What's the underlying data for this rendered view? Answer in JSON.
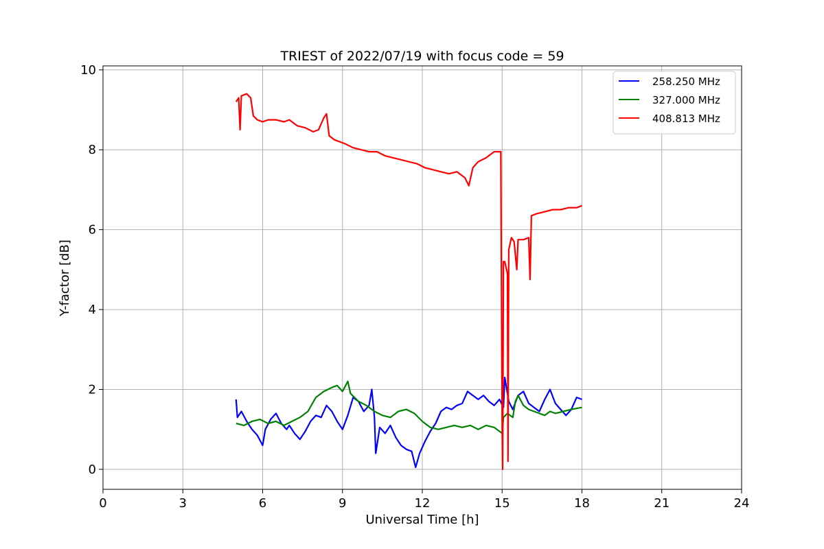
{
  "chart_data": {
    "type": "line",
    "title": "TRIEST of 2022/07/19 with focus code = 59",
    "xlabel": "Universal Time [h]",
    "ylabel": "Y-factor [dB]",
    "xlim": [
      0,
      24
    ],
    "ylim": [
      -0.5,
      10.1
    ],
    "xticks": [
      0,
      3,
      6,
      9,
      12,
      15,
      18,
      21,
      24
    ],
    "yticks": [
      0,
      2,
      4,
      6,
      8,
      10
    ],
    "grid": true,
    "legend_position": "top-right",
    "series": [
      {
        "name": "258.250 MHz",
        "color": "#0000ff",
        "points": [
          [
            5.0,
            1.75
          ],
          [
            5.05,
            1.3
          ],
          [
            5.2,
            1.45
          ],
          [
            5.4,
            1.2
          ],
          [
            5.6,
            1.0
          ],
          [
            5.8,
            0.85
          ],
          [
            6.0,
            0.6
          ],
          [
            6.1,
            1.0
          ],
          [
            6.3,
            1.25
          ],
          [
            6.5,
            1.4
          ],
          [
            6.7,
            1.15
          ],
          [
            6.9,
            1.0
          ],
          [
            7.0,
            1.1
          ],
          [
            7.2,
            0.9
          ],
          [
            7.4,
            0.75
          ],
          [
            7.6,
            0.95
          ],
          [
            7.8,
            1.2
          ],
          [
            8.0,
            1.35
          ],
          [
            8.2,
            1.3
          ],
          [
            8.4,
            1.6
          ],
          [
            8.6,
            1.45
          ],
          [
            8.8,
            1.2
          ],
          [
            9.0,
            1.0
          ],
          [
            9.2,
            1.35
          ],
          [
            9.4,
            1.8
          ],
          [
            9.6,
            1.7
          ],
          [
            9.8,
            1.45
          ],
          [
            10.0,
            1.6
          ],
          [
            10.1,
            2.0
          ],
          [
            10.2,
            1.3
          ],
          [
            10.25,
            0.4
          ],
          [
            10.4,
            1.05
          ],
          [
            10.6,
            0.9
          ],
          [
            10.8,
            1.1
          ],
          [
            11.0,
            0.8
          ],
          [
            11.2,
            0.6
          ],
          [
            11.4,
            0.5
          ],
          [
            11.6,
            0.45
          ],
          [
            11.75,
            0.05
          ],
          [
            11.9,
            0.4
          ],
          [
            12.1,
            0.7
          ],
          [
            12.3,
            0.95
          ],
          [
            12.5,
            1.15
          ],
          [
            12.7,
            1.45
          ],
          [
            12.9,
            1.55
          ],
          [
            13.1,
            1.5
          ],
          [
            13.3,
            1.6
          ],
          [
            13.5,
            1.65
          ],
          [
            13.7,
            1.95
          ],
          [
            13.9,
            1.85
          ],
          [
            14.1,
            1.75
          ],
          [
            14.3,
            1.85
          ],
          [
            14.5,
            1.7
          ],
          [
            14.7,
            1.6
          ],
          [
            14.9,
            1.75
          ],
          [
            15.05,
            1.55
          ],
          [
            15.1,
            2.3
          ],
          [
            15.25,
            1.7
          ],
          [
            15.4,
            1.5
          ],
          [
            15.6,
            1.85
          ],
          [
            15.8,
            1.95
          ],
          [
            16.0,
            1.65
          ],
          [
            16.2,
            1.55
          ],
          [
            16.4,
            1.45
          ],
          [
            16.6,
            1.75
          ],
          [
            16.8,
            2.0
          ],
          [
            17.0,
            1.65
          ],
          [
            17.2,
            1.5
          ],
          [
            17.4,
            1.35
          ],
          [
            17.6,
            1.5
          ],
          [
            17.8,
            1.8
          ],
          [
            18.0,
            1.75
          ]
        ]
      },
      {
        "name": "327.000 MHz",
        "color": "#008000",
        "points": [
          [
            5.0,
            1.15
          ],
          [
            5.3,
            1.1
          ],
          [
            5.6,
            1.2
          ],
          [
            5.9,
            1.25
          ],
          [
            6.2,
            1.15
          ],
          [
            6.5,
            1.2
          ],
          [
            6.8,
            1.1
          ],
          [
            7.1,
            1.2
          ],
          [
            7.4,
            1.3
          ],
          [
            7.7,
            1.45
          ],
          [
            8.0,
            1.8
          ],
          [
            8.3,
            1.95
          ],
          [
            8.6,
            2.05
          ],
          [
            8.8,
            2.1
          ],
          [
            9.0,
            1.95
          ],
          [
            9.2,
            2.2
          ],
          [
            9.3,
            1.9
          ],
          [
            9.6,
            1.7
          ],
          [
            9.9,
            1.6
          ],
          [
            10.2,
            1.45
          ],
          [
            10.5,
            1.35
          ],
          [
            10.8,
            1.3
          ],
          [
            11.1,
            1.45
          ],
          [
            11.4,
            1.5
          ],
          [
            11.7,
            1.4
          ],
          [
            12.0,
            1.2
          ],
          [
            12.3,
            1.05
          ],
          [
            12.6,
            1.0
          ],
          [
            12.9,
            1.05
          ],
          [
            13.2,
            1.1
          ],
          [
            13.5,
            1.05
          ],
          [
            13.8,
            1.1
          ],
          [
            14.1,
            1.0
          ],
          [
            14.4,
            1.1
          ],
          [
            14.7,
            1.05
          ],
          [
            15.0,
            0.9
          ],
          [
            15.05,
            1.3
          ],
          [
            15.2,
            1.4
          ],
          [
            15.4,
            1.3
          ],
          [
            15.5,
            1.7
          ],
          [
            15.6,
            1.85
          ],
          [
            15.8,
            1.6
          ],
          [
            16.0,
            1.5
          ],
          [
            16.2,
            1.45
          ],
          [
            16.4,
            1.4
          ],
          [
            16.6,
            1.35
          ],
          [
            16.8,
            1.45
          ],
          [
            17.0,
            1.4
          ],
          [
            17.3,
            1.45
          ],
          [
            17.6,
            1.5
          ],
          [
            18.0,
            1.55
          ]
        ]
      },
      {
        "name": "408.813 MHz",
        "color": "#ff0000",
        "points": [
          [
            5.0,
            9.2
          ],
          [
            5.1,
            9.3
          ],
          [
            5.15,
            8.5
          ],
          [
            5.2,
            9.35
          ],
          [
            5.4,
            9.4
          ],
          [
            5.55,
            9.3
          ],
          [
            5.65,
            8.85
          ],
          [
            5.8,
            8.75
          ],
          [
            6.0,
            8.7
          ],
          [
            6.2,
            8.75
          ],
          [
            6.5,
            8.75
          ],
          [
            6.8,
            8.7
          ],
          [
            7.0,
            8.75
          ],
          [
            7.3,
            8.6
          ],
          [
            7.6,
            8.55
          ],
          [
            7.9,
            8.45
          ],
          [
            8.1,
            8.5
          ],
          [
            8.3,
            8.8
          ],
          [
            8.4,
            8.9
          ],
          [
            8.5,
            8.35
          ],
          [
            8.7,
            8.25
          ],
          [
            8.9,
            8.2
          ],
          [
            9.1,
            8.15
          ],
          [
            9.4,
            8.05
          ],
          [
            9.7,
            8.0
          ],
          [
            10.0,
            7.95
          ],
          [
            10.3,
            7.95
          ],
          [
            10.6,
            7.85
          ],
          [
            10.9,
            7.8
          ],
          [
            11.2,
            7.75
          ],
          [
            11.5,
            7.7
          ],
          [
            11.8,
            7.65
          ],
          [
            12.1,
            7.55
          ],
          [
            12.4,
            7.5
          ],
          [
            12.7,
            7.45
          ],
          [
            13.0,
            7.4
          ],
          [
            13.3,
            7.45
          ],
          [
            13.6,
            7.3
          ],
          [
            13.75,
            7.1
          ],
          [
            13.9,
            7.55
          ],
          [
            14.1,
            7.7
          ],
          [
            14.4,
            7.8
          ],
          [
            14.7,
            7.95
          ],
          [
            14.95,
            7.95
          ],
          [
            15.0,
            1.0
          ],
          [
            15.02,
            0.0
          ],
          [
            15.05,
            5.2
          ],
          [
            15.1,
            5.2
          ],
          [
            15.2,
            4.9
          ],
          [
            15.22,
            0.2
          ],
          [
            15.25,
            5.5
          ],
          [
            15.35,
            5.8
          ],
          [
            15.45,
            5.7
          ],
          [
            15.55,
            5.0
          ],
          [
            15.6,
            5.75
          ],
          [
            15.8,
            5.75
          ],
          [
            16.0,
            5.8
          ],
          [
            16.05,
            4.75
          ],
          [
            16.1,
            6.35
          ],
          [
            16.3,
            6.4
          ],
          [
            16.6,
            6.45
          ],
          [
            16.9,
            6.5
          ],
          [
            17.2,
            6.5
          ],
          [
            17.5,
            6.55
          ],
          [
            17.8,
            6.55
          ],
          [
            18.0,
            6.6
          ]
        ]
      }
    ]
  }
}
